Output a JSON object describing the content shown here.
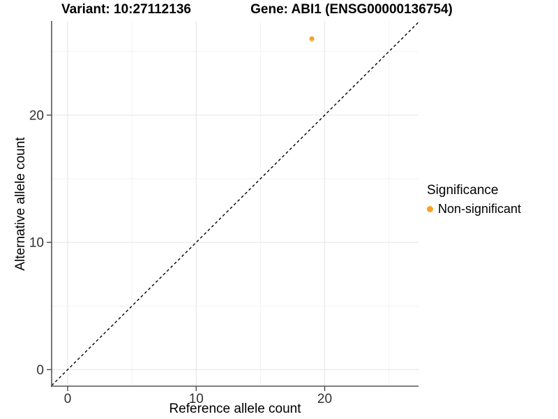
{
  "chart_data": {
    "type": "scatter",
    "title_left": "Variant: 10:27112136",
    "title_right": "Gene: ABI1 (ENSG00000136754)",
    "xlabel": "Reference allele count",
    "ylabel": "Alternative allele count",
    "xlim": [
      -1.25,
      27.3
    ],
    "ylim": [
      -1.3,
      27.4
    ],
    "x_major_ticks": [
      0,
      10,
      20
    ],
    "y_major_ticks": [
      0,
      10,
      20
    ],
    "x_minor_gridlines": [
      5,
      15,
      25
    ],
    "y_minor_gridlines": [
      5,
      15,
      25
    ],
    "grid": true,
    "identity_line": {
      "equation": "y = x",
      "style": "dashed",
      "color": "#000000"
    },
    "points": [
      {
        "x": 19,
        "y": 26,
        "significance": "Non-significant"
      }
    ],
    "legend": {
      "position": "right",
      "title": "Significance",
      "items": [
        {
          "label": "Non-significant",
          "color": "#F9A125",
          "marker": "circle"
        }
      ]
    },
    "colors": {
      "point": "#F9A125",
      "grid_major": "#E4E4E4",
      "grid_minor": "#F2F2F2",
      "axis_line": "#555555",
      "tick_mark": "#4A4A4A",
      "tick_label": "#303030",
      "background": "#FFFFFF"
    }
  }
}
